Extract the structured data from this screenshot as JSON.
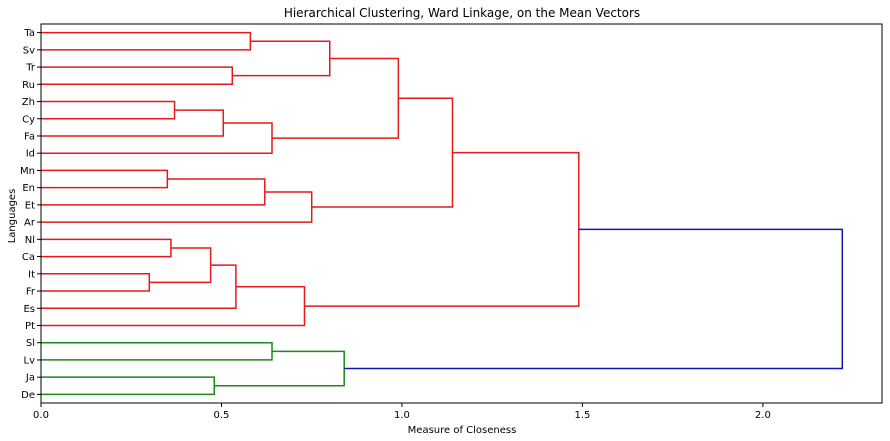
{
  "chart_data": {
    "type": "dendrogram",
    "title": "Hierarchical Clustering, Ward Linkage, on the Mean Vectors",
    "xlabel": "Measure of Closeness",
    "ylabel": "Languages",
    "xlim": [
      0,
      2.33
    ],
    "xticks": [
      0.0,
      0.5,
      1.0,
      1.5,
      2.0
    ],
    "xtick_labels": [
      "0.0",
      "0.5",
      "1.0",
      "1.5",
      "2.0"
    ],
    "leaves": [
      "Ta",
      "Sv",
      "Tr",
      "Ru",
      "Zh",
      "Cy",
      "Fa",
      "Id",
      "Mn",
      "En",
      "Et",
      "Ar",
      "Nl",
      "Ca",
      "It",
      "Fr",
      "Es",
      "Pt",
      "Sl",
      "Lv",
      "Ja",
      "De"
    ],
    "colors": {
      "red_cluster": "#e41a1c",
      "green_cluster": "#1a8a1a",
      "root": "#1414b4",
      "axis": "#000000"
    },
    "merges": [
      {
        "id": "n1",
        "left": "Ta",
        "right": "Sv",
        "height": 0.58,
        "color": "red"
      },
      {
        "id": "n2",
        "left": "Tr",
        "right": "Ru",
        "height": 0.53,
        "color": "red"
      },
      {
        "id": "n3",
        "left": "n1",
        "right": "n2",
        "height": 0.8,
        "color": "red"
      },
      {
        "id": "n4",
        "left": "Zh",
        "right": "Cy",
        "height": 0.37,
        "color": "red"
      },
      {
        "id": "n5",
        "left": "n4",
        "right": "Fa",
        "height": 0.505,
        "color": "red"
      },
      {
        "id": "n6",
        "left": "n5",
        "right": "Id",
        "height": 0.64,
        "color": "red"
      },
      {
        "id": "n7",
        "left": "n3",
        "right": "n6",
        "height": 0.99,
        "color": "red"
      },
      {
        "id": "n8",
        "left": "Mn",
        "right": "En",
        "height": 0.35,
        "color": "red"
      },
      {
        "id": "n9",
        "left": "n8",
        "right": "Et",
        "height": 0.62,
        "color": "red"
      },
      {
        "id": "n10",
        "left": "n9",
        "right": "Ar",
        "height": 0.75,
        "color": "red"
      },
      {
        "id": "n11",
        "left": "n7",
        "right": "n10",
        "height": 1.14,
        "color": "red"
      },
      {
        "id": "n12",
        "left": "Nl",
        "right": "Ca",
        "height": 0.36,
        "color": "red"
      },
      {
        "id": "n13",
        "left": "It",
        "right": "Fr",
        "height": 0.3,
        "color": "red"
      },
      {
        "id": "n14",
        "left": "n12",
        "right": "n13",
        "height": 0.47,
        "color": "red"
      },
      {
        "id": "n15",
        "left": "n14",
        "right": "Es",
        "height": 0.54,
        "color": "red"
      },
      {
        "id": "n16",
        "left": "n15",
        "right": "Pt",
        "height": 0.73,
        "color": "red"
      },
      {
        "id": "n17",
        "left": "n11",
        "right": "n16",
        "height": 1.49,
        "color": "red"
      },
      {
        "id": "n18",
        "left": "Sl",
        "right": "Lv",
        "height": 0.64,
        "color": "green"
      },
      {
        "id": "n19",
        "left": "Ja",
        "right": "De",
        "height": 0.48,
        "color": "green"
      },
      {
        "id": "n20",
        "left": "n18",
        "right": "n19",
        "height": 0.84,
        "color": "green"
      },
      {
        "id": "n21",
        "left": "n17",
        "right": "n20",
        "height": 2.22,
        "color": "root"
      }
    ]
  }
}
